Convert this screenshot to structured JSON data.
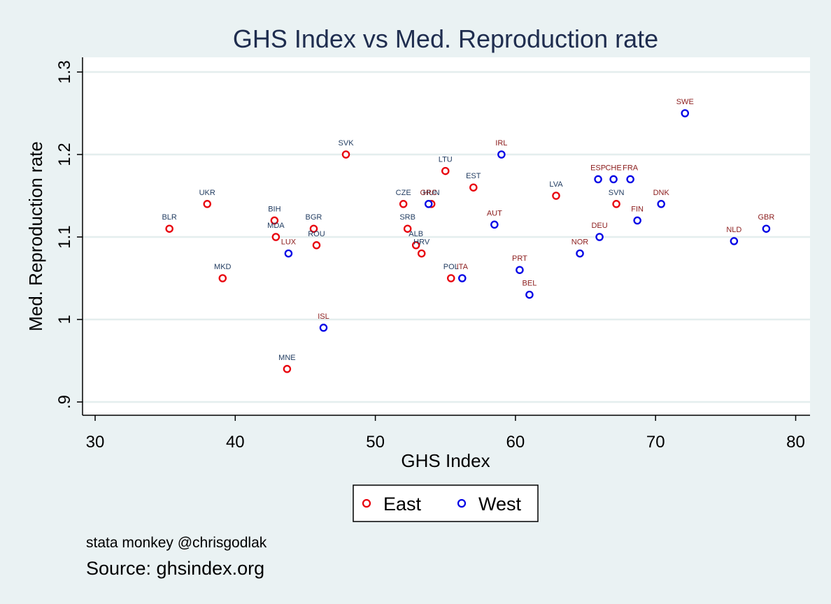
{
  "chart_data": {
    "type": "scatter",
    "title": "GHS Index vs Med. Reproduction rate",
    "xlabel": "GHS Index",
    "ylabel": "Med. Reproduction rate",
    "xlim": [
      29.5,
      81
    ],
    "ylim": [
      0.885,
      1.315
    ],
    "xticks": [
      "30",
      "40",
      "50",
      "60",
      "70",
      "80"
    ],
    "xtick_values": [
      30,
      40,
      50,
      60,
      70,
      80
    ],
    "yticks": [
      ".9",
      "1",
      "1.1",
      "1.2",
      "1.3"
    ],
    "ytick_values": [
      0.9,
      1.0,
      1.1,
      1.2,
      1.3
    ],
    "grid": "horizontal",
    "legend_position": "bottom",
    "series": [
      {
        "name": "East",
        "color": "#e8000b",
        "label_color": "#1f3a5f",
        "points": [
          {
            "label": "BLR",
            "x": 35.3,
            "y": 1.11
          },
          {
            "label": "UKR",
            "x": 38.0,
            "y": 1.14
          },
          {
            "label": "MKD",
            "x": 39.1,
            "y": 1.05
          },
          {
            "label": "BIH",
            "x": 42.8,
            "y": 1.12
          },
          {
            "label": "MDA",
            "x": 42.9,
            "y": 1.1
          },
          {
            "label": "MNE",
            "x": 43.7,
            "y": 0.94
          },
          {
            "label": "BGR",
            "x": 45.6,
            "y": 1.11
          },
          {
            "label": "ROU",
            "x": 45.8,
            "y": 1.09
          },
          {
            "label": "SVK",
            "x": 47.9,
            "y": 1.2
          },
          {
            "label": "CZE",
            "x": 52.0,
            "y": 1.14
          },
          {
            "label": "SRB",
            "x": 52.3,
            "y": 1.11
          },
          {
            "label": "ALB",
            "x": 52.9,
            "y": 1.09
          },
          {
            "label": "HRV",
            "x": 53.3,
            "y": 1.08
          },
          {
            "label": "HUN",
            "x": 54.0,
            "y": 1.14
          },
          {
            "label": "LTU",
            "x": 55.0,
            "y": 1.18
          },
          {
            "label": "POL",
            "x": 55.4,
            "y": 1.05
          },
          {
            "label": "EST",
            "x": 57.0,
            "y": 1.16
          },
          {
            "label": "LVA",
            "x": 62.9,
            "y": 1.15
          },
          {
            "label": "SVN",
            "x": 67.2,
            "y": 1.14
          }
        ]
      },
      {
        "name": "West",
        "color": "#0000e6",
        "label_color": "#8b1c1c",
        "points": [
          {
            "label": "LUX",
            "x": 43.8,
            "y": 1.08
          },
          {
            "label": "ISL",
            "x": 46.3,
            "y": 0.99
          },
          {
            "label": "GRC",
            "x": 53.8,
            "y": 1.14
          },
          {
            "label": "ITA",
            "x": 56.2,
            "y": 1.05
          },
          {
            "label": "AUT",
            "x": 58.5,
            "y": 1.115
          },
          {
            "label": "IRL",
            "x": 59.0,
            "y": 1.2
          },
          {
            "label": "PRT",
            "x": 60.3,
            "y": 1.06
          },
          {
            "label": "BEL",
            "x": 61.0,
            "y": 1.03
          },
          {
            "label": "NOR",
            "x": 64.6,
            "y": 1.08
          },
          {
            "label": "ESP",
            "x": 65.9,
            "y": 1.17
          },
          {
            "label": "DEU",
            "x": 66.0,
            "y": 1.1
          },
          {
            "label": "CHE",
            "x": 67.0,
            "y": 1.17
          },
          {
            "label": "FRA",
            "x": 68.2,
            "y": 1.17
          },
          {
            "label": "FIN",
            "x": 68.7,
            "y": 1.12
          },
          {
            "label": "DNK",
            "x": 70.4,
            "y": 1.14
          },
          {
            "label": "SWE",
            "x": 72.1,
            "y": 1.25
          },
          {
            "label": "NLD",
            "x": 75.6,
            "y": 1.095
          },
          {
            "label": "GBR",
            "x": 77.9,
            "y": 1.11
          }
        ]
      }
    ]
  },
  "notes": {
    "credit": "stata monkey @chrisgodlak",
    "source": "Source: ghsindex.org"
  }
}
